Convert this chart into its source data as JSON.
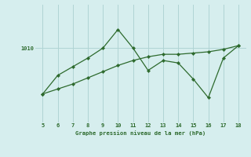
{
  "xlabel": "Graphe pression niveau de la mer (hPa)",
  "x_values": [
    5,
    6,
    7,
    8,
    9,
    10,
    11,
    12,
    13,
    14,
    15,
    16,
    17,
    18
  ],
  "y_line1": [
    1006.3,
    1007.8,
    1008.5,
    1009.2,
    1010.0,
    1011.5,
    1010.0,
    1008.2,
    1009.0,
    1008.8,
    1007.5,
    1006.0,
    1009.2,
    1010.2
  ],
  "y_line2": [
    1006.3,
    1006.7,
    1007.1,
    1007.6,
    1008.1,
    1008.6,
    1009.0,
    1009.3,
    1009.5,
    1009.5,
    1009.6,
    1009.7,
    1009.9,
    1010.2
  ],
  "line_color": "#2d6a2d",
  "bg_color": "#d6eeee",
  "grid_color": "#b0d4d4",
  "label_color": "#2d6a2d",
  "ytick_label": "1010",
  "ytick_value": 1010,
  "ylim": [
    1004.0,
    1013.5
  ],
  "xlim": [
    4.5,
    18.5
  ]
}
